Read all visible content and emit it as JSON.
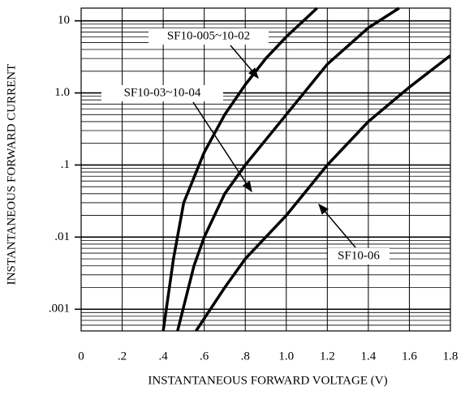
{
  "chart_data": {
    "type": "line",
    "x_label": "INSTANTANEOUS FORWARD VOLTAGE (V)",
    "y_label": "INSTANTANEOUS FORWARD CURRENT",
    "xlim": [
      0,
      1.8
    ],
    "ylim": [
      0.0005,
      15
    ],
    "log_y": true,
    "grid": true,
    "minor_grid": true,
    "color": "#000000",
    "xticks": [
      0,
      {
        "value": 0.2,
        "label": ".2"
      },
      {
        "value": 0.4,
        "label": ".4"
      },
      {
        "value": 0.6,
        "label": ".6"
      },
      {
        "value": 0.8,
        "label": ".8"
      },
      {
        "value": 1.0,
        "label": "1.0"
      },
      1.2,
      1.4,
      1.6,
      1.8
    ],
    "yticks": [
      {
        "value": 0.001,
        "label": ".001"
      },
      {
        "value": 0.01,
        "label": ".01"
      },
      {
        "value": 0.1,
        "label": ".1"
      },
      {
        "value": 1,
        "label": "1.0"
      },
      10
    ],
    "series": [
      {
        "name": "SF10-005~10-02",
        "x": [
          0.4,
          0.45,
          0.5,
          0.6,
          0.7,
          0.8,
          0.9,
          1.0,
          1.15
        ],
        "values": [
          0.0005,
          0.005,
          0.03,
          0.15,
          0.5,
          1.3,
          3,
          6,
          15
        ]
      },
      {
        "name": "SF10-03~10-04",
        "x": [
          0.47,
          0.55,
          0.6,
          0.7,
          0.8,
          1.0,
          1.2,
          1.4,
          1.55
        ],
        "values": [
          0.0005,
          0.004,
          0.01,
          0.04,
          0.1,
          0.5,
          2.5,
          8,
          15
        ]
      },
      {
        "name": "SF10-06",
        "x": [
          0.56,
          0.7,
          0.8,
          1.0,
          1.2,
          1.4,
          1.6,
          1.8
        ],
        "values": [
          0.0005,
          0.002,
          0.005,
          0.02,
          0.1,
          0.4,
          1.2,
          3.3
        ]
      }
    ]
  }
}
